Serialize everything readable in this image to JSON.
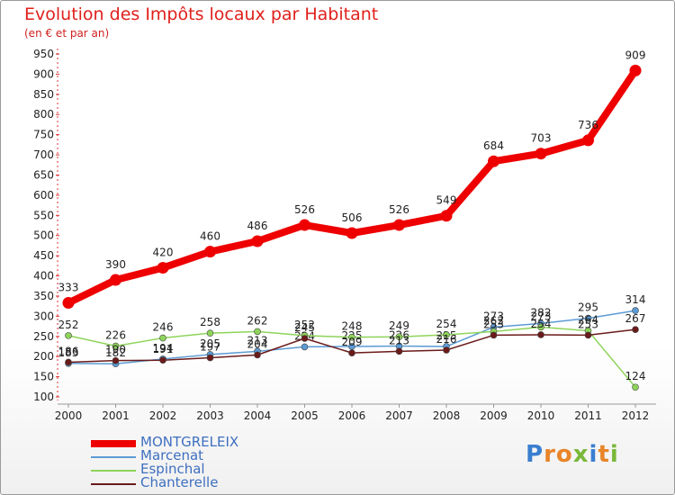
{
  "title": "Evolution des Impôts locaux par Habitant",
  "subtitle": "(en € et par an)",
  "logo": "Proxiti",
  "chart_data": {
    "type": "line",
    "categories": [
      "2000",
      "2001",
      "2002",
      "2003",
      "2004",
      "2005",
      "2006",
      "2007",
      "2008",
      "2009",
      "2010",
      "2011",
      "2012"
    ],
    "yticks": [
      100,
      150,
      200,
      250,
      300,
      350,
      400,
      450,
      500,
      550,
      600,
      650,
      700,
      750,
      800,
      850,
      900,
      950
    ],
    "ylim": [
      100,
      950
    ],
    "grid": false,
    "legend_position": "bottom-left",
    "series": [
      {
        "name": "MONTGRELEIX",
        "color": "#ee0000",
        "values": [
          333,
          390,
          420,
          460,
          486,
          526,
          506,
          526,
          549,
          684,
          703,
          736,
          909
        ]
      },
      {
        "name": "Marcenat",
        "color": "#5b9bd5",
        "values": [
          183,
          182,
          194,
          205,
          213,
          224,
          225,
          226,
          225,
          273,
          282,
          295,
          314
        ]
      },
      {
        "name": "Espinchal",
        "color": "#8ed45a",
        "values": [
          252,
          226,
          246,
          258,
          262,
          252,
          248,
          249,
          254,
          262,
          273,
          264,
          124
        ]
      },
      {
        "name": "Chanterelle",
        "color": "#6b1a1a",
        "values": [
          186,
          190,
          191,
          197,
          204,
          245,
          209,
          213,
          216,
          253,
          254,
          253,
          267
        ]
      }
    ]
  }
}
